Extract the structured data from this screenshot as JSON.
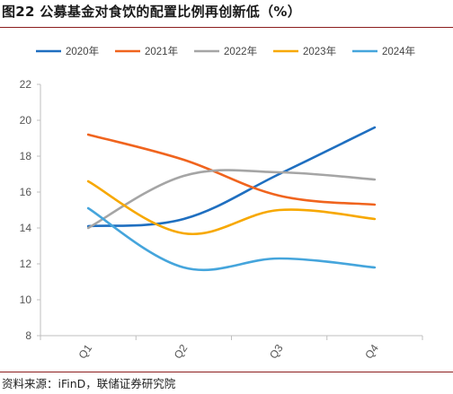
{
  "title": "图22 公募基金对食饮的配置比例再创新低（%）",
  "source": "资料来源：iFinD，联储证券研究院",
  "chart_data": {
    "type": "line",
    "categories": [
      "Q1",
      "Q2",
      "Q3",
      "Q4"
    ],
    "series": [
      {
        "name": "2020年",
        "values": [
          14.1,
          14.5,
          17.0,
          19.6
        ],
        "color": "#1f6fc0"
      },
      {
        "name": "2021年",
        "values": [
          19.2,
          17.8,
          15.8,
          15.3
        ],
        "color": "#f0641e"
      },
      {
        "name": "2022年",
        "values": [
          14.0,
          16.9,
          17.1,
          16.7
        ],
        "color": "#a5a5a5"
      },
      {
        "name": "2023年",
        "values": [
          16.6,
          13.7,
          15.0,
          14.5
        ],
        "color": "#f7a800"
      },
      {
        "name": "2024年",
        "values": [
          15.1,
          11.8,
          12.3,
          11.8
        ],
        "color": "#45a5dc"
      }
    ],
    "ylim": [
      8,
      22
    ],
    "yticks": [
      8,
      10,
      12,
      14,
      16,
      18,
      20,
      22
    ],
    "legend_position": "top",
    "grid": false,
    "smooth": true
  }
}
